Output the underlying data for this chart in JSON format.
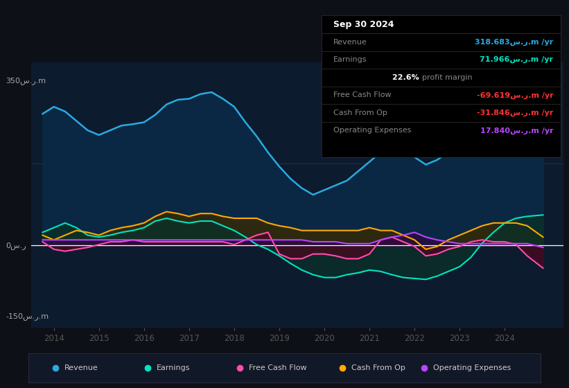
{
  "bg_color": "#0d1117",
  "plot_bg_color": "#0d1b2e",
  "ylim": [
    -175,
    390
  ],
  "xlim": [
    2013.5,
    2025.3
  ],
  "xticks": [
    2014,
    2015,
    2016,
    2017,
    2018,
    2019,
    2020,
    2021,
    2022,
    2023,
    2024
  ],
  "revenue_color": "#29abe2",
  "earnings_color": "#00e5c0",
  "fcf_color": "#ff4dac",
  "cashfromop_color": "#ffaa00",
  "opex_color": "#bb44ff",
  "revenue_fill": "#0a2a45",
  "earnings_fill": "#0a3028",
  "fcf_fill": "#4a0820",
  "cashfromop_fill": "#3a2800",
  "opex_fill": "#2a0a45",
  "years": [
    2013.75,
    2014.0,
    2014.25,
    2014.5,
    2014.75,
    2015.0,
    2015.25,
    2015.5,
    2015.75,
    2016.0,
    2016.25,
    2016.5,
    2016.75,
    2017.0,
    2017.25,
    2017.5,
    2017.75,
    2018.0,
    2018.25,
    2018.5,
    2018.75,
    2019.0,
    2019.25,
    2019.5,
    2019.75,
    2020.0,
    2020.25,
    2020.5,
    2020.75,
    2021.0,
    2021.25,
    2021.5,
    2021.75,
    2022.0,
    2022.25,
    2022.5,
    2022.75,
    2023.0,
    2023.25,
    2023.5,
    2023.75,
    2024.0,
    2024.25,
    2024.5,
    2024.85
  ],
  "revenue": [
    280,
    295,
    285,
    265,
    245,
    235,
    245,
    255,
    258,
    262,
    278,
    300,
    310,
    312,
    322,
    326,
    312,
    295,
    262,
    232,
    198,
    168,
    142,
    122,
    108,
    118,
    128,
    138,
    158,
    178,
    198,
    212,
    198,
    188,
    172,
    182,
    198,
    212,
    228,
    252,
    278,
    298,
    314,
    322,
    325
  ],
  "earnings": [
    28,
    38,
    48,
    38,
    22,
    18,
    22,
    28,
    32,
    38,
    52,
    58,
    52,
    48,
    52,
    52,
    42,
    32,
    18,
    2,
    -8,
    -22,
    -38,
    -52,
    -62,
    -68,
    -68,
    -62,
    -58,
    -52,
    -55,
    -62,
    -68,
    -70,
    -72,
    -65,
    -55,
    -45,
    -25,
    5,
    28,
    48,
    58,
    62,
    65
  ],
  "fcf": [
    8,
    -8,
    -12,
    -8,
    -4,
    2,
    8,
    8,
    12,
    8,
    8,
    8,
    8,
    8,
    8,
    8,
    8,
    2,
    12,
    22,
    28,
    -18,
    -28,
    -28,
    -18,
    -18,
    -22,
    -28,
    -28,
    -18,
    12,
    18,
    8,
    -2,
    -22,
    -18,
    -8,
    -2,
    8,
    12,
    8,
    8,
    2,
    -22,
    -48
  ],
  "cashfromop": [
    22,
    12,
    22,
    32,
    28,
    22,
    32,
    38,
    42,
    48,
    62,
    72,
    68,
    62,
    68,
    68,
    62,
    58,
    58,
    58,
    48,
    42,
    38,
    32,
    32,
    32,
    32,
    32,
    32,
    38,
    32,
    32,
    22,
    12,
    -8,
    -2,
    12,
    22,
    32,
    42,
    48,
    48,
    48,
    42,
    18
  ],
  "opex": [
    12,
    12,
    12,
    12,
    12,
    12,
    12,
    12,
    12,
    12,
    12,
    12,
    12,
    12,
    12,
    12,
    12,
    12,
    12,
    12,
    12,
    12,
    12,
    12,
    8,
    8,
    8,
    4,
    4,
    4,
    12,
    18,
    22,
    28,
    18,
    12,
    8,
    4,
    4,
    4,
    4,
    4,
    4,
    4,
    -4
  ],
  "info_box": {
    "date": "Sep 30 2024",
    "rows": [
      {
        "label": "Revenue",
        "value": "318.683س.ر.m /yr",
        "color": "#29abe2"
      },
      {
        "label": "Earnings",
        "value": "71.966س.ر.m /yr",
        "color": "#00e5c0"
      },
      {
        "label": "",
        "value": "22.6% profit margin",
        "color": "#ffffff",
        "is_margin": true
      },
      {
        "label": "Free Cash Flow",
        "value": "-69.619س.ر.m /yr",
        "color": "#ff3333"
      },
      {
        "label": "Cash From Op",
        "value": "-31.846س.ر.m /yr",
        "color": "#ff3333"
      },
      {
        "label": "Operating Expenses",
        "value": "17.840س.ر.m /yr",
        "color": "#bb44ff"
      }
    ]
  },
  "legend": [
    {
      "label": "Revenue",
      "color": "#29abe2"
    },
    {
      "label": "Earnings",
      "color": "#00e5c0"
    },
    {
      "label": "Free Cash Flow",
      "color": "#ff4dac"
    },
    {
      "label": "Cash From Op",
      "color": "#ffaa00"
    },
    {
      "label": "Operating Expenses",
      "color": "#bb44ff"
    }
  ]
}
